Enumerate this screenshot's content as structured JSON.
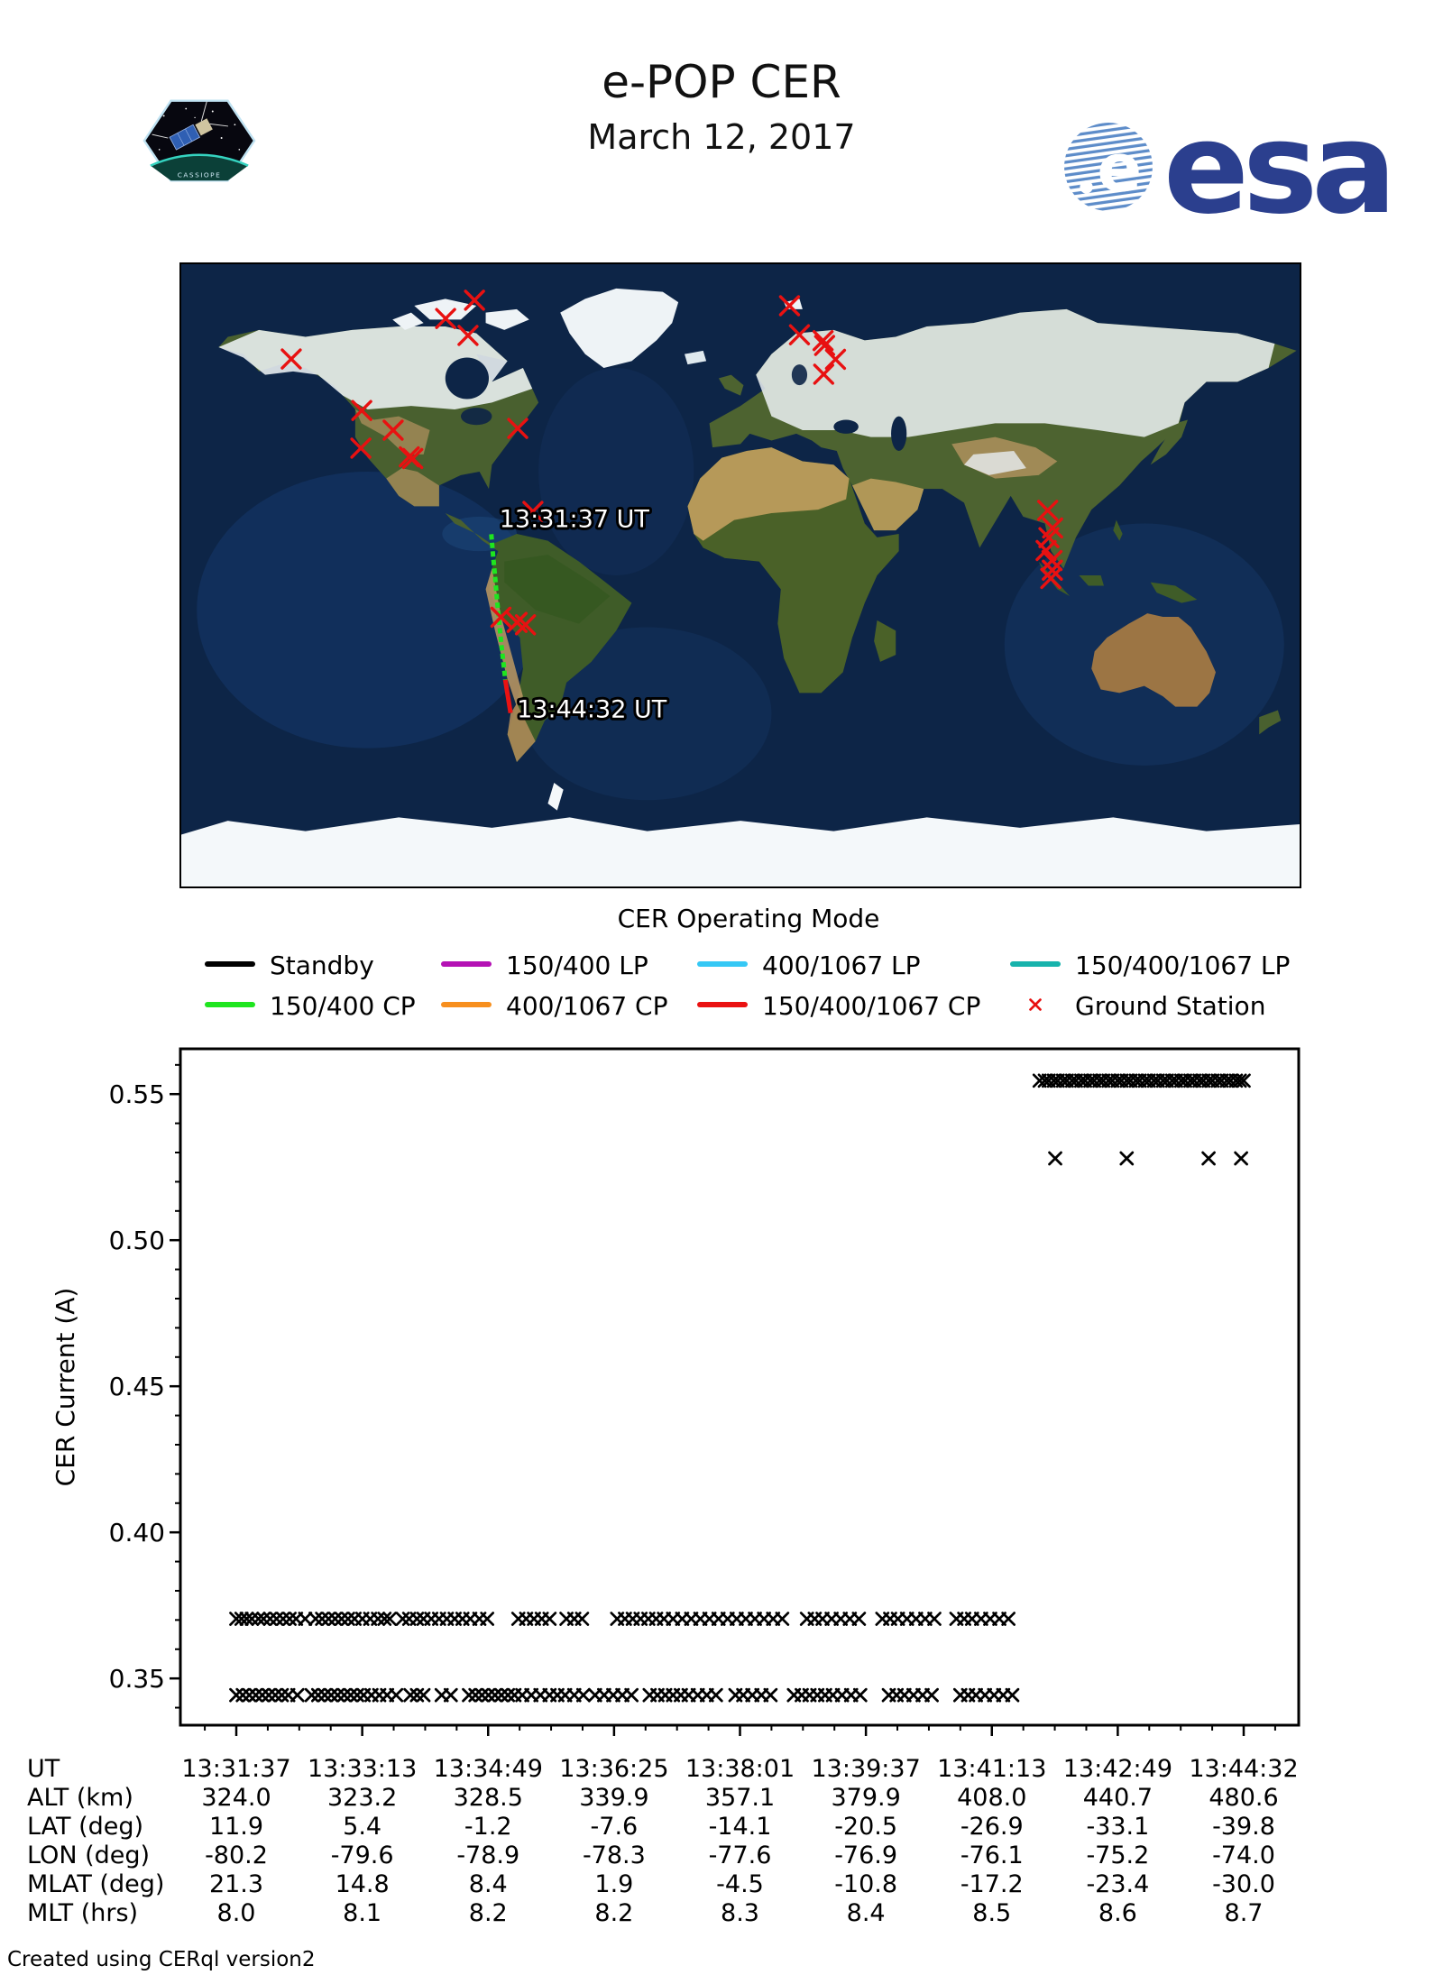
{
  "header": {
    "title": "e-POP CER",
    "date": "March 12, 2017"
  },
  "branding": {
    "esa_wordmark": "esa",
    "patch_name": "CASSIOPE",
    "esa_blue": "#2b3f8e"
  },
  "map": {
    "start_label": "13:31:37 UT",
    "end_label": "13:44:32 UT",
    "colors": {
      "track_green": "#1fe51f",
      "track_red": "#ea1212",
      "station": "#e81111"
    },
    "ground_stations": [
      [
        -85.6,
        79.6
      ],
      [
        -94.9,
        74.3
      ],
      [
        -87.7,
        69.4
      ],
      [
        -144.6,
        62.6
      ],
      [
        -121.9,
        47.7
      ],
      [
        -111.8,
        42.0
      ],
      [
        -122.2,
        36.8
      ],
      [
        -106.6,
        34.3
      ],
      [
        -105.5,
        33.8
      ],
      [
        -71.7,
        42.5
      ],
      [
        -66.8,
        18.5
      ],
      [
        -77.1,
        -12.1
      ],
      [
        -71.9,
        -13.6
      ],
      [
        -69.2,
        -14.3
      ],
      [
        15.8,
        78.0
      ],
      [
        19.0,
        69.6
      ],
      [
        26.6,
        67.9
      ],
      [
        27.1,
        66.5
      ],
      [
        30.6,
        62.5
      ],
      [
        26.8,
        58.2
      ],
      [
        98.9,
        18.8
      ],
      [
        100.5,
        13.7
      ],
      [
        99.3,
        10.9
      ],
      [
        98.4,
        7.2
      ],
      [
        100.3,
        4.3
      ],
      [
        100.4,
        1.5
      ],
      [
        99.9,
        -0.9
      ]
    ],
    "track_green": [
      [
        -80.2,
        11.9
      ],
      [
        -79.6,
        5.4
      ],
      [
        -78.9,
        -1.2
      ],
      [
        -78.3,
        -7.6
      ],
      [
        -77.6,
        -14.1
      ],
      [
        -76.9,
        -20.5
      ],
      [
        -76.1,
        -26.9
      ],
      [
        -75.7,
        -30.2
      ]
    ],
    "track_red": [
      [
        -75.7,
        -30.2
      ],
      [
        -75.2,
        -33.1
      ],
      [
        -74.0,
        -39.8
      ]
    ]
  },
  "legend": {
    "title": "CER Operating Mode",
    "items": [
      {
        "label": "Standby",
        "color": "#000000",
        "kind": "line"
      },
      {
        "label": "150/400 LP",
        "color": "#b412b4",
        "kind": "line"
      },
      {
        "label": "400/1067 LP",
        "color": "#35c8f5",
        "kind": "line"
      },
      {
        "label": "150/400/1067 LP",
        "color": "#17b3ac",
        "kind": "line"
      },
      {
        "label": "150/400 CP",
        "color": "#1fe51f",
        "kind": "line"
      },
      {
        "label": "400/1067 CP",
        "color": "#f78f1e",
        "kind": "line"
      },
      {
        "label": "150/400/1067 CP",
        "color": "#ea1212",
        "kind": "line"
      },
      {
        "label": "Ground Station",
        "color": "#e81111",
        "kind": "marker"
      }
    ]
  },
  "chart_data": {
    "type": "scatter",
    "marker": "x",
    "marker_color": "#000000",
    "ylabel": "CER Current (A)",
    "ylim": [
      0.334,
      0.5655
    ],
    "ytick_values": [
      0.35,
      0.4,
      0.45,
      0.5,
      0.55
    ],
    "ytick_labels": [
      "0.35",
      "0.40",
      "0.45",
      "0.50",
      "0.55"
    ],
    "x_total_seconds": 775,
    "xtick_labels": [
      "13:31:37",
      "13:33:13",
      "13:34:49",
      "13:36:25",
      "13:38:01",
      "13:39:37",
      "13:41:13",
      "13:42:49",
      "13:44:32"
    ],
    "grid": false,
    "series": [
      {
        "name": "current-high-band",
        "value": 0.5546,
        "t": [
          618,
          622,
          625,
          629,
          632,
          636,
          639,
          643,
          646,
          650,
          653,
          657,
          660,
          664,
          667,
          671,
          674,
          678,
          681,
          685,
          688,
          692,
          695,
          699,
          702,
          706,
          709,
          713,
          716,
          720,
          723,
          727,
          730,
          734,
          737,
          741,
          744,
          748,
          751,
          755,
          758,
          762,
          765,
          769,
          772,
          775
        ]
      },
      {
        "name": "current-high-sparse",
        "value": 0.528,
        "t": [
          630,
          685,
          748,
          773
        ]
      },
      {
        "name": "current-low-upper",
        "value": 0.3704,
        "t": [
          0,
          4,
          8,
          12,
          17,
          21,
          26,
          31,
          36,
          41,
          46,
          53,
          61,
          66,
          71,
          76,
          81,
          86,
          91,
          97,
          103,
          109,
          114,
          118,
          128,
          133,
          139,
          144,
          150,
          156,
          162,
          168,
          174,
          180,
          187,
          193,
          217,
          223,
          229,
          235,
          241,
          254,
          260,
          266,
          293,
          299,
          305,
          311,
          317,
          323,
          329,
          336,
          343,
          350,
          357,
          364,
          371,
          378,
          385,
          392,
          399,
          406,
          413,
          420,
          439,
          445,
          451,
          458,
          465,
          472,
          479,
          497,
          503,
          509,
          516,
          523,
          530,
          537,
          554,
          560,
          566,
          573,
          580,
          587,
          594
        ]
      },
      {
        "name": "current-low-lower",
        "value": 0.3443,
        "t": [
          0,
          5,
          10,
          15,
          20,
          25,
          30,
          35,
          40,
          47,
          58,
          63,
          68,
          73,
          78,
          83,
          88,
          93,
          98,
          104,
          110,
          116,
          123,
          134,
          139,
          144,
          158,
          165,
          179,
          184,
          189,
          194,
          199,
          204,
          209,
          214,
          220,
          227,
          234,
          241,
          247,
          253,
          260,
          267,
          276,
          283,
          290,
          297,
          304,
          318,
          324,
          330,
          336,
          342,
          348,
          355,
          362,
          369,
          384,
          390,
          397,
          404,
          411,
          429,
          435,
          441,
          447,
          453,
          459,
          466,
          473,
          480,
          502,
          508,
          514,
          521,
          528,
          535,
          557,
          563,
          569,
          576,
          583,
          590,
          597
        ]
      }
    ]
  },
  "table": {
    "rows": [
      {
        "label": "UT",
        "values": [
          "13:31:37",
          "13:33:13",
          "13:34:49",
          "13:36:25",
          "13:38:01",
          "13:39:37",
          "13:41:13",
          "13:42:49",
          "13:44:32"
        ]
      },
      {
        "label": "ALT (km)",
        "values": [
          "324.0",
          "323.2",
          "328.5",
          "339.9",
          "357.1",
          "379.9",
          "408.0",
          "440.7",
          "480.6"
        ]
      },
      {
        "label": "LAT (deg)",
        "values": [
          "11.9",
          "5.4",
          "-1.2",
          "-7.6",
          "-14.1",
          "-20.5",
          "-26.9",
          "-33.1",
          "-39.8"
        ]
      },
      {
        "label": "LON (deg)",
        "values": [
          "-80.2",
          "-79.6",
          "-78.9",
          "-78.3",
          "-77.6",
          "-76.9",
          "-76.1",
          "-75.2",
          "-74.0"
        ]
      },
      {
        "label": "MLAT (deg)",
        "values": [
          "21.3",
          "14.8",
          "8.4",
          "1.9",
          "-4.5",
          "-10.8",
          "-17.2",
          "-23.4",
          "-30.0"
        ]
      },
      {
        "label": "MLT (hrs)",
        "values": [
          "8.0",
          "8.1",
          "8.2",
          "8.2",
          "8.3",
          "8.4",
          "8.5",
          "8.6",
          "8.7"
        ]
      }
    ]
  },
  "footer": {
    "credit": "Created using CERql version2"
  }
}
